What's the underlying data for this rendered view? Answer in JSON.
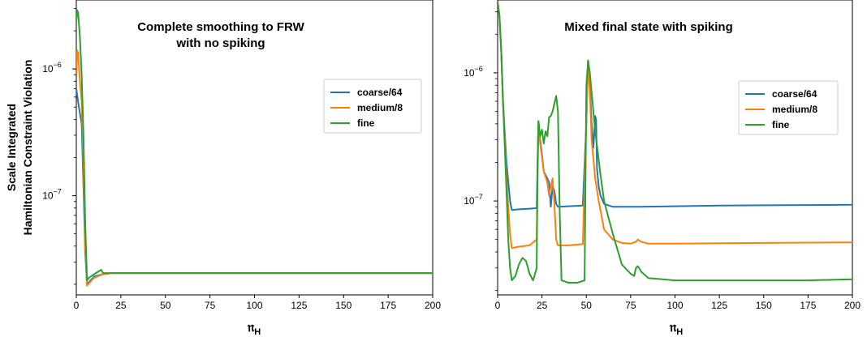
{
  "chart_data": [
    {
      "type": "line",
      "title_lines": [
        "Complete smoothing to FRW",
        "with no spiking"
      ],
      "xlabel": "𝔫",
      "xlabel_sub": "H",
      "ylabel_lines": [
        "Scale Integrated",
        "Hamiltonian Constraint Violation"
      ],
      "xlim": [
        0,
        200
      ],
      "ylim": [
        1.65e-08,
        3.5e-06
      ],
      "yscale": "log",
      "x_ticks": [
        "0",
        "25",
        "50",
        "75",
        "100",
        "125",
        "150",
        "175",
        "200"
      ],
      "y_ticks": [
        "10−7",
        "10−6"
      ],
      "legend_position": "center-right",
      "series": [
        {
          "name": "coarse/64",
          "color": "#1f77b4",
          "points": [
            [
              0,
              7e-07
            ],
            [
              1,
              5.5e-07
            ],
            [
              2,
              4.5e-07
            ],
            [
              3,
              3.7e-07
            ],
            [
              4,
              1.2e-07
            ],
            [
              5,
              3.5e-08
            ],
            [
              6,
              2e-08
            ],
            [
              8,
              2.15e-08
            ],
            [
              10,
              2.3e-08
            ],
            [
              15,
              2.4e-08
            ],
            [
              20,
              2.45e-08
            ],
            [
              50,
              2.45e-08
            ],
            [
              100,
              2.45e-08
            ],
            [
              150,
              2.45e-08
            ],
            [
              200,
              2.45e-08
            ]
          ]
        },
        {
          "name": "medium/8",
          "color": "#ff7f0e",
          "points": [
            [
              0,
              9e-07
            ],
            [
              0.5,
              1.4e-06
            ],
            [
              1,
              1.35e-06
            ],
            [
              2,
              8e-07
            ],
            [
              3,
              5.5e-07
            ],
            [
              4,
              1.8e-07
            ],
            [
              5,
              4e-08
            ],
            [
              6,
              1.95e-08
            ],
            [
              8,
              2.1e-08
            ],
            [
              10,
              2.25e-08
            ],
            [
              15,
              2.4e-08
            ],
            [
              20,
              2.45e-08
            ],
            [
              50,
              2.45e-08
            ],
            [
              100,
              2.45e-08
            ],
            [
              150,
              2.45e-08
            ],
            [
              200,
              2.45e-08
            ]
          ]
        },
        {
          "name": "fine",
          "color": "#2ca02c",
          "points": [
            [
              0,
              2.4e-06
            ],
            [
              0.5,
              2.9e-06
            ],
            [
              1,
              2.8e-06
            ],
            [
              2,
              1.8e-06
            ],
            [
              3,
              9e-07
            ],
            [
              4,
              3e-07
            ],
            [
              5,
              6e-08
            ],
            [
              6,
              2.15e-08
            ],
            [
              7,
              2.25e-08
            ],
            [
              9,
              2.35e-08
            ],
            [
              11,
              2.45e-08
            ],
            [
              13,
              2.55e-08
            ],
            [
              14,
              2.6e-08
            ],
            [
              15,
              2.45e-08
            ],
            [
              20,
              2.45e-08
            ],
            [
              50,
              2.45e-08
            ],
            [
              100,
              2.45e-08
            ],
            [
              150,
              2.45e-08
            ],
            [
              200,
              2.45e-08
            ]
          ]
        }
      ]
    },
    {
      "type": "line",
      "title_lines": [
        "Mixed final state with spiking"
      ],
      "xlabel": "𝔫",
      "xlabel_sub": "H",
      "xlim": [
        0,
        200
      ],
      "ylim": [
        1.85e-08,
        3.7e-06
      ],
      "yscale": "log",
      "x_ticks": [
        "0",
        "25",
        "50",
        "75",
        "100",
        "125",
        "150",
        "175",
        "200"
      ],
      "y_ticks": [
        "10−7",
        "10−6"
      ],
      "legend_position": "center-right",
      "series": [
        {
          "name": "coarse/64",
          "color": "#1f77b4",
          "points": [
            [
              0,
              3.5e-06
            ],
            [
              1,
              2.8e-06
            ],
            [
              2,
              1.5e-06
            ],
            [
              3,
              6e-07
            ],
            [
              5,
              2e-07
            ],
            [
              7,
              1e-07
            ],
            [
              8,
              8.5e-08
            ],
            [
              12,
              8.6e-08
            ],
            [
              18,
              8.7e-08
            ],
            [
              22,
              8.8e-08
            ],
            [
              23,
              4.2e-07
            ],
            [
              24,
              3e-07
            ],
            [
              25,
              2.3e-07
            ],
            [
              26,
              1.7e-07
            ],
            [
              28,
              1.5e-07
            ],
            [
              29,
              1.4e-07
            ],
            [
              30,
              9e-08
            ],
            [
              31,
              1.3e-07
            ],
            [
              32,
              1.2e-07
            ],
            [
              33,
              9.5e-08
            ],
            [
              34,
              9e-08
            ],
            [
              40,
              9.1e-08
            ],
            [
              48,
              9.2e-08
            ],
            [
              50,
              4e-07
            ],
            [
              51,
              1.25e-06
            ],
            [
              52,
              8e-07
            ],
            [
              53,
              4e-07
            ],
            [
              54,
              2.6e-07
            ],
            [
              55,
              4.6e-07
            ],
            [
              55.5,
              4.3e-07
            ],
            [
              56,
              1.8e-07
            ],
            [
              57,
              1.3e-07
            ],
            [
              58,
              1.1e-07
            ],
            [
              60,
              9.5e-08
            ],
            [
              65,
              9e-08
            ],
            [
              70,
              9e-08
            ],
            [
              80,
              9e-08
            ],
            [
              100,
              9.1e-08
            ],
            [
              125,
              9.2e-08
            ],
            [
              150,
              9.25e-08
            ],
            [
              175,
              9.3e-08
            ],
            [
              200,
              9.35e-08
            ]
          ]
        },
        {
          "name": "medium/8",
          "color": "#ff7f0e",
          "points": [
            [
              0,
              3.5e-06
            ],
            [
              1,
              2.8e-06
            ],
            [
              2,
              1.5e-06
            ],
            [
              3,
              6e-07
            ],
            [
              5,
              1.5e-07
            ],
            [
              7,
              5.5e-08
            ],
            [
              8,
              4.3e-08
            ],
            [
              12,
              4.4e-08
            ],
            [
              18,
              4.5e-08
            ],
            [
              22,
              5e-08
            ],
            [
              23,
              3.8e-07
            ],
            [
              24,
              2.8e-07
            ],
            [
              25,
              2.2e-07
            ],
            [
              26,
              1.7e-07
            ],
            [
              28,
              1.4e-07
            ],
            [
              29,
              1.1e-07
            ],
            [
              30,
              1.3e-07
            ],
            [
              31,
              1.5e-07
            ],
            [
              32,
              9.5e-08
            ],
            [
              33,
              5e-08
            ],
            [
              34,
              4.5e-08
            ],
            [
              40,
              4.5e-08
            ],
            [
              48,
              4.6e-08
            ],
            [
              50,
              4e-07
            ],
            [
              51,
              1.2e-06
            ],
            [
              52,
              7e-07
            ],
            [
              53,
              3e-07
            ],
            [
              55,
              1.5e-07
            ],
            [
              57,
              1e-07
            ],
            [
              60,
              6e-08
            ],
            [
              65,
              5e-08
            ],
            [
              70,
              4.7e-08
            ],
            [
              75,
              4.65e-08
            ],
            [
              78,
              4.8e-08
            ],
            [
              79,
              5e-08
            ],
            [
              81,
              4.8e-08
            ],
            [
              85,
              4.65e-08
            ],
            [
              100,
              4.65e-08
            ],
            [
              150,
              4.7e-08
            ],
            [
              200,
              4.75e-08
            ]
          ]
        },
        {
          "name": "fine",
          "color": "#2ca02c",
          "points": [
            [
              0,
              3.6e-06
            ],
            [
              1,
              2.8e-06
            ],
            [
              2,
              1.5e-06
            ],
            [
              3,
              6e-07
            ],
            [
              5,
              1.2e-07
            ],
            [
              6,
              5e-08
            ],
            [
              7,
              3e-08
            ],
            [
              8,
              2.4e-08
            ],
            [
              10,
              2.6e-08
            ],
            [
              12,
              3.2e-08
            ],
            [
              14,
              3.6e-08
            ],
            [
              16,
              3.4e-08
            ],
            [
              18,
              2.7e-08
            ],
            [
              20,
              2.4e-08
            ],
            [
              22,
              3e-08
            ],
            [
              22.5,
              2e-07
            ],
            [
              23,
              4.2e-07
            ],
            [
              24,
              3.2e-07
            ],
            [
              25,
              3.6e-07
            ],
            [
              26,
              2.8e-07
            ],
            [
              27,
              3.5e-07
            ],
            [
              28,
              3.2e-07
            ],
            [
              29,
              4.5e-07
            ],
            [
              30,
              4.6e-07
            ],
            [
              31,
              5e-07
            ],
            [
              33,
              6.6e-07
            ],
            [
              34,
              5e-07
            ],
            [
              35,
              8e-08
            ],
            [
              36,
              2.4e-08
            ],
            [
              40,
              2.3e-08
            ],
            [
              45,
              2.3e-08
            ],
            [
              49,
              2.4e-08
            ],
            [
              50,
              8e-07
            ],
            [
              51,
              1.25e-06
            ],
            [
              52,
              1e-06
            ],
            [
              53,
              7e-07
            ],
            [
              55,
              3.5e-07
            ],
            [
              58,
              1.6e-07
            ],
            [
              60,
              1e-07
            ],
            [
              65,
              5.5e-08
            ],
            [
              70,
              3.2e-08
            ],
            [
              75,
              2.7e-08
            ],
            [
              77,
              2.6e-08
            ],
            [
              78,
              3e-08
            ],
            [
              79,
              3.1e-08
            ],
            [
              81,
              2.8e-08
            ],
            [
              85,
              2.5e-08
            ],
            [
              100,
              2.4e-08
            ],
            [
              125,
              2.4e-08
            ],
            [
              150,
              2.4e-08
            ],
            [
              175,
              2.4e-08
            ],
            [
              200,
              2.45e-08
            ]
          ]
        }
      ]
    }
  ]
}
